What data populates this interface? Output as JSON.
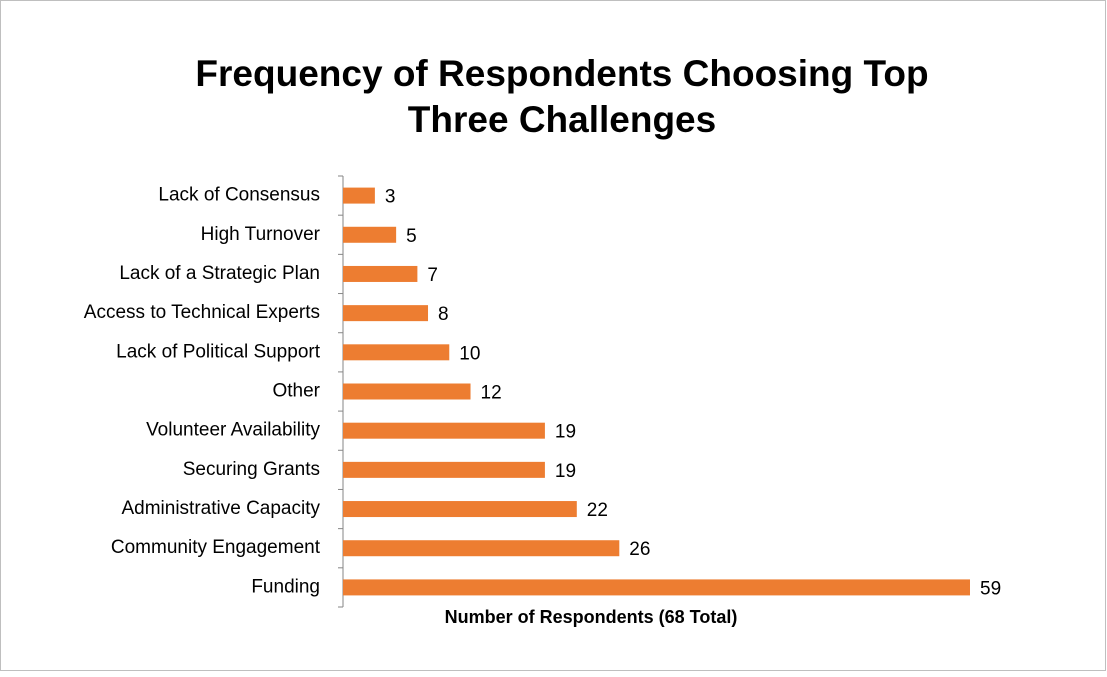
{
  "chart_data": {
    "type": "bar",
    "orientation": "horizontal",
    "title": [
      "Frequency of Respondents Choosing Top",
      "Three Challenges"
    ],
    "x_label": "Number of Respondents (68 Total)",
    "categories": [
      "Lack of Consensus",
      "High Turnover",
      "Lack of a Strategic Plan",
      "Access to Technical Experts",
      "Lack of Political Support",
      "Other",
      "Volunteer Availability",
      "Securing Grants",
      "Administrative Capacity",
      "Community Engagement",
      "Funding"
    ],
    "values": [
      3,
      5,
      7,
      8,
      10,
      12,
      19,
      19,
      22,
      26,
      59
    ],
    "color": "#ed7d31"
  }
}
